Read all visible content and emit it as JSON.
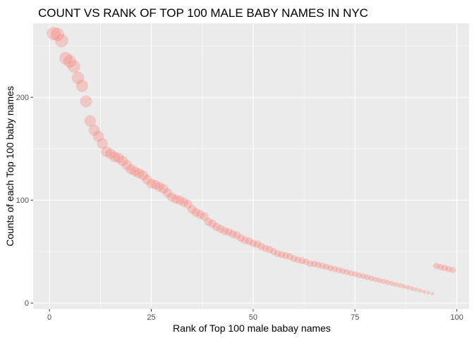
{
  "colors": {
    "panel_background": "#EBEBEB",
    "grid_major": "#FFFFFF",
    "point": "#F8766D"
  },
  "chart_data": {
    "type": "scatter",
    "title": "COUNT VS RANK OF TOP 100 MALE BABY NAMES IN NYC",
    "xlabel": "Rank of Top 100 male babay names",
    "ylabel": "Counts of each Top 100 baby names",
    "xlim": [
      -4,
      103
    ],
    "ylim": [
      -6,
      272
    ],
    "x_ticks": [
      0,
      25,
      50,
      75,
      100
    ],
    "y_ticks": [
      0,
      100,
      200
    ],
    "x_tick_labels": [
      "0",
      "25",
      "50",
      "75",
      "100"
    ],
    "y_tick_labels": [
      "0",
      "100",
      "200"
    ],
    "grid": true,
    "legend": "none",
    "size_encoding": "count",
    "x": [
      1,
      2,
      3,
      4,
      5,
      6,
      7,
      8,
      9,
      10,
      11,
      12,
      13,
      14,
      15,
      16,
      17,
      18,
      19,
      20,
      21,
      22,
      23,
      24,
      25,
      26,
      27,
      28,
      29,
      30,
      31,
      32,
      33,
      34,
      35,
      36,
      37,
      38,
      39,
      40,
      41,
      42,
      43,
      44,
      45,
      46,
      47,
      48,
      49,
      50,
      51,
      52,
      53,
      54,
      55,
      56,
      57,
      58,
      59,
      60,
      61,
      62,
      63,
      64,
      65,
      66,
      67,
      68,
      69,
      70,
      71,
      72,
      73,
      74,
      75,
      76,
      77,
      78,
      79,
      80,
      81,
      82,
      83,
      84,
      85,
      86,
      87,
      88,
      89,
      90,
      91,
      92,
      93,
      94,
      95,
      96,
      97,
      98,
      99
    ],
    "y": [
      262,
      261,
      255,
      238,
      235,
      230,
      219,
      211,
      196,
      177,
      168,
      162,
      155,
      147,
      145,
      142,
      141,
      138,
      134,
      130,
      128,
      126,
      124,
      120,
      116,
      115,
      113,
      111,
      107,
      103,
      101,
      100,
      98,
      96,
      91,
      88,
      86,
      84,
      79,
      77,
      74,
      72,
      70,
      69,
      67,
      66,
      63,
      61,
      60,
      58,
      57,
      55,
      53,
      52,
      50,
      48,
      47,
      46,
      45,
      43,
      42,
      41,
      40,
      38,
      38,
      37,
      36,
      35,
      34,
      33,
      32,
      31,
      30,
      29,
      28,
      27,
      26,
      25,
      24,
      23,
      22,
      21,
      20,
      19,
      18,
      17,
      16,
      15,
      14,
      13,
      12,
      11,
      10,
      9,
      36,
      35,
      34,
      33,
      32
    ],
    "note": ""
  }
}
